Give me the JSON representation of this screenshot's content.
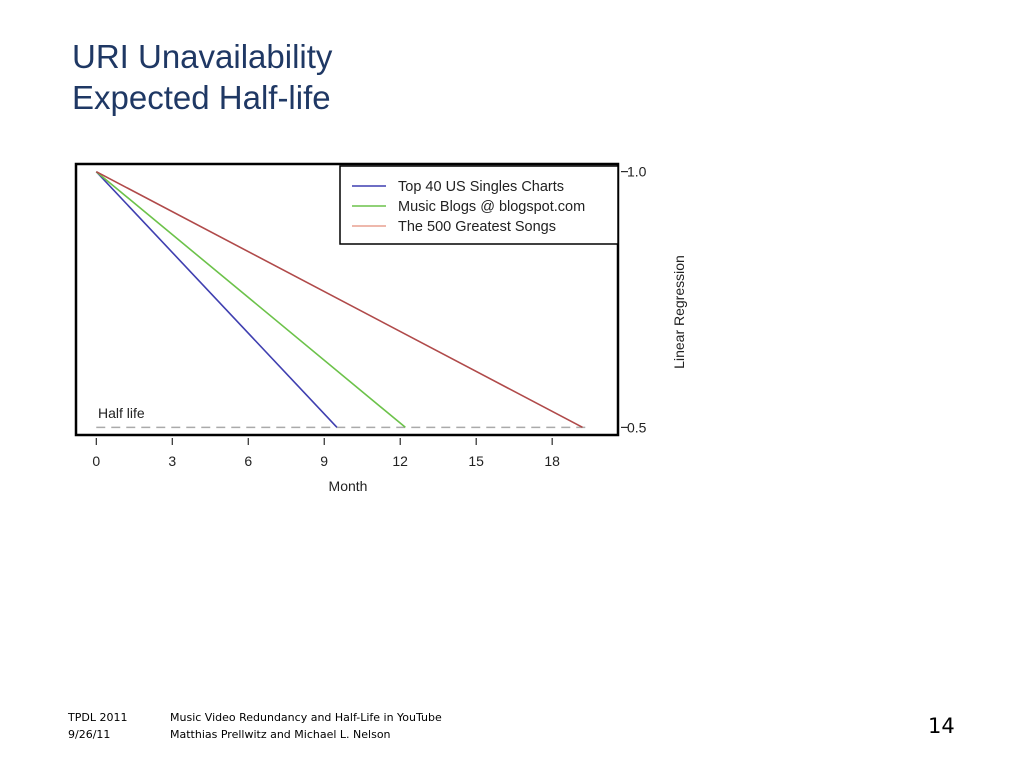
{
  "slide": {
    "title_line1": "URI Unavailability",
    "title_line2": "Expected Half-life",
    "footer_left_line1": "TPDL 2011",
    "footer_left_line2": "9/26/11",
    "footer_center_line1": "Music Video Redundancy and Half-Life in YouTube",
    "footer_center_line2": "Matthias Prellwitz and Michael L. Nelson",
    "page_number": "14"
  },
  "chart_data": {
    "type": "line",
    "title": "",
    "xlabel": "Month",
    "ylabel": "Linear Regression",
    "xlim": [
      -0.8,
      20.6
    ],
    "ylim": [
      0.485,
      1.015
    ],
    "x_ticks": [
      0,
      3,
      6,
      9,
      12,
      15,
      18
    ],
    "y_ticks": [
      0.5,
      1.0
    ],
    "y_tick_labels": [
      "0.5",
      "1.0"
    ],
    "y_axis_side": "right",
    "grid": false,
    "legend_position": "top-right",
    "series": [
      {
        "name": "Top 40 US Singles Charts",
        "color": "#3f3fb0",
        "x": [
          0,
          9.5
        ],
        "y": [
          1.0,
          0.5
        ]
      },
      {
        "name": "Music Blogs @ blogspot.com",
        "color": "#6cc24a",
        "x": [
          0,
          12.2
        ],
        "y": [
          1.0,
          0.5
        ]
      },
      {
        "name": "The 500 Greatest Songs",
        "color": "#b04a4a",
        "legend_color": "#e8a090",
        "x": [
          0,
          19.2
        ],
        "y": [
          1.0,
          0.5
        ]
      }
    ],
    "reference_line": {
      "label": "Half life",
      "y": 0.5,
      "color": "#aaaaaa",
      "style": "dashed"
    }
  }
}
